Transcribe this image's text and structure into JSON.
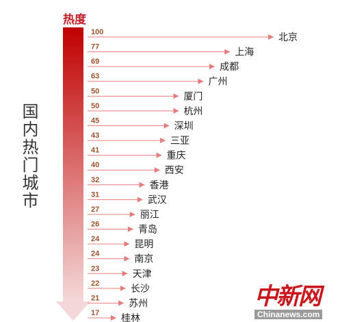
{
  "chart_data": {
    "type": "bar",
    "title": "国内热门城市",
    "axis_label": "热度",
    "categories": [
      "北京",
      "上海",
      "成都",
      "广州",
      "厦门",
      "杭州",
      "深圳",
      "三亚",
      "重庆",
      "西安",
      "香港",
      "武汉",
      "丽江",
      "青岛",
      "昆明",
      "南京",
      "天津",
      "长沙",
      "苏州",
      "桂林"
    ],
    "values": [
      100,
      77,
      69,
      63,
      50,
      50,
      45,
      43,
      41,
      40,
      32,
      31,
      27,
      26,
      24,
      24,
      23,
      22,
      21,
      17
    ],
    "colors": {
      "bar_top": "#c00000",
      "bar_bottom": "#f4d8d8",
      "value_text": "#a0522d",
      "arrow": "#e57c7c"
    }
  },
  "watermark": {
    "logo": "中新网",
    "site": "Chinanews.com"
  }
}
